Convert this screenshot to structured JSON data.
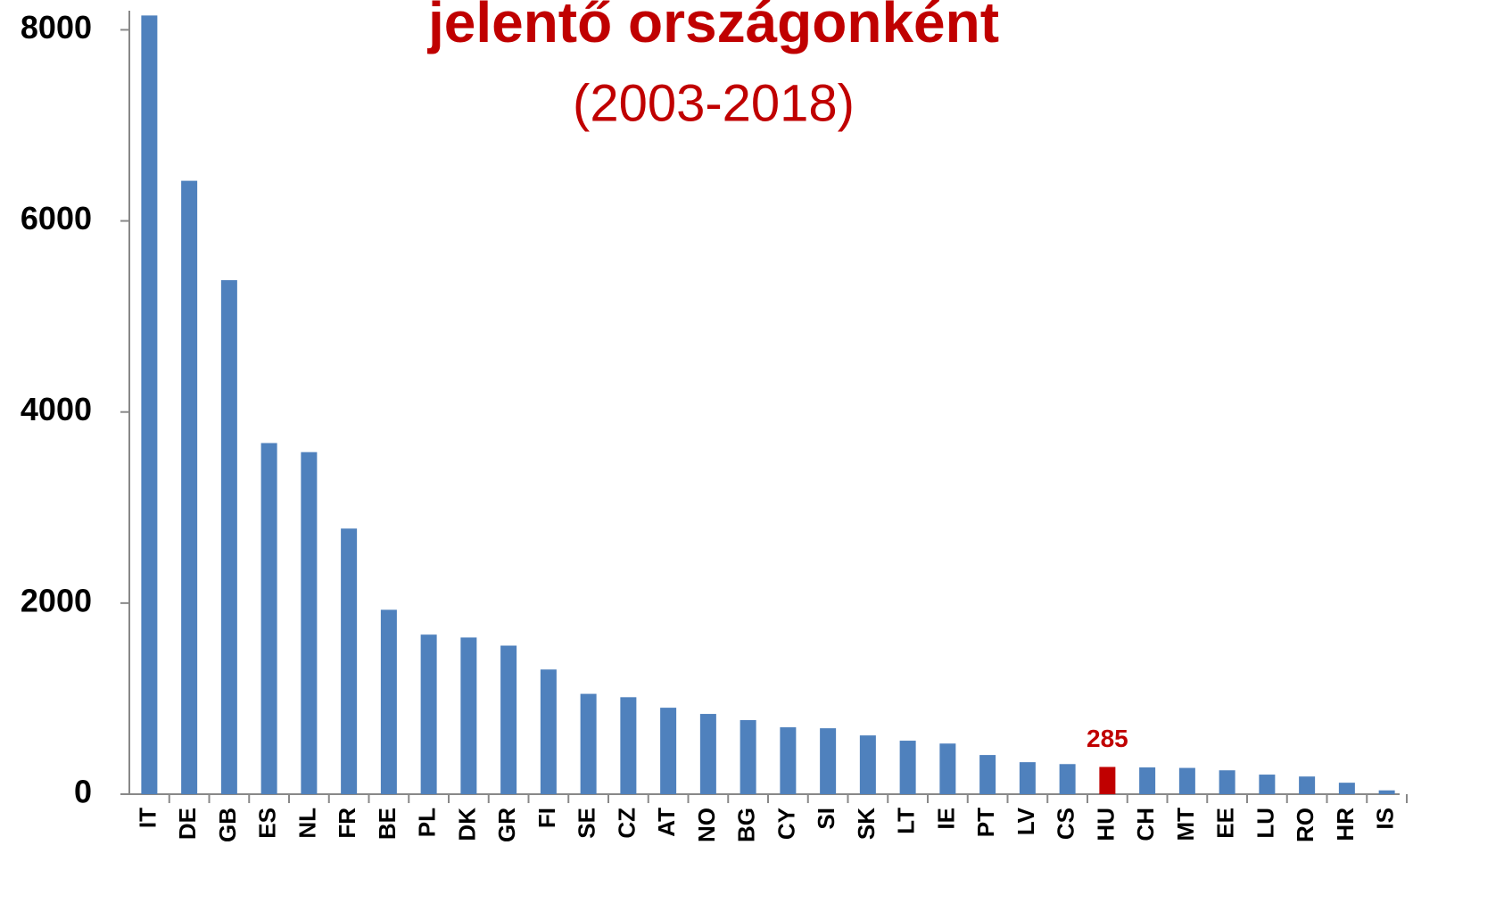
{
  "chart_data": {
    "type": "bar",
    "title": "jelentő országonként",
    "subtitle": "(2003-2018)",
    "categories": [
      "IT",
      "DE",
      "GB",
      "ES",
      "NL",
      "FR",
      "BE",
      "PL",
      "DK",
      "GR",
      "FI",
      "SE",
      "CZ",
      "AT",
      "NO",
      "BG",
      "CY",
      "SI",
      "SK",
      "LT",
      "IE",
      "PT",
      "LV",
      "CS",
      "HU",
      "CH",
      "MT",
      "EE",
      "LU",
      "RO",
      "HR",
      "IS"
    ],
    "values": [
      8150,
      6420,
      5380,
      3675,
      3580,
      2780,
      1930,
      1670,
      1640,
      1555,
      1305,
      1050,
      1015,
      905,
      840,
      775,
      700,
      690,
      615,
      560,
      530,
      410,
      335,
      315,
      285,
      280,
      275,
      250,
      205,
      185,
      120,
      40
    ],
    "color": "#4f81bd",
    "highlight": {
      "categories": [
        "HU"
      ],
      "color": "#c00000",
      "value_label": true
    },
    "ylim": [
      0,
      8200
    ],
    "yticks": [
      0,
      2000,
      4000,
      6000,
      8000
    ],
    "grid": false
  }
}
